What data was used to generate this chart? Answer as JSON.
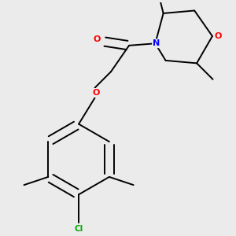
{
  "background_color": "#ebebeb",
  "bond_color": "#000000",
  "atom_colors": {
    "O": "#ff0000",
    "N": "#0000ff",
    "Cl": "#00aa00",
    "C": "#000000"
  },
  "figsize": [
    3.0,
    3.0
  ],
  "dpi": 100
}
